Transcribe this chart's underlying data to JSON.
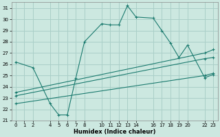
{
  "xlabel": "Humidex (Indice chaleur)",
  "bg_color": "#cce8e0",
  "grid_color": "#aacfc8",
  "line_color": "#1a7a6e",
  "xlim": [
    -0.5,
    23.5
  ],
  "ylim": [
    21,
    31.5
  ],
  "yticks": [
    21,
    22,
    23,
    24,
    25,
    26,
    27,
    28,
    29,
    30,
    31
  ],
  "xticks": [
    0,
    1,
    2,
    4,
    5,
    6,
    7,
    8,
    10,
    11,
    12,
    13,
    14,
    16,
    17,
    18,
    19,
    20,
    22,
    23
  ],
  "series": [
    {
      "x": [
        0,
        2,
        4,
        5,
        6,
        7,
        8,
        10,
        11,
        12,
        13,
        14,
        16,
        17,
        18,
        19,
        20,
        22,
        23
      ],
      "y": [
        26.2,
        25.7,
        22.5,
        21.5,
        21.5,
        24.8,
        28.0,
        29.6,
        29.5,
        29.5,
        31.2,
        30.2,
        30.1,
        29.0,
        27.9,
        26.6,
        27.7,
        24.8,
        25.1
      ]
    },
    {
      "x": [
        0,
        22,
        23
      ],
      "y": [
        23.5,
        27.0,
        27.3
      ]
    },
    {
      "x": [
        0,
        22,
        23
      ],
      "y": [
        23.2,
        26.5,
        26.6
      ]
    },
    {
      "x": [
        0,
        22,
        23
      ],
      "y": [
        22.5,
        25.0,
        25.2
      ]
    }
  ]
}
